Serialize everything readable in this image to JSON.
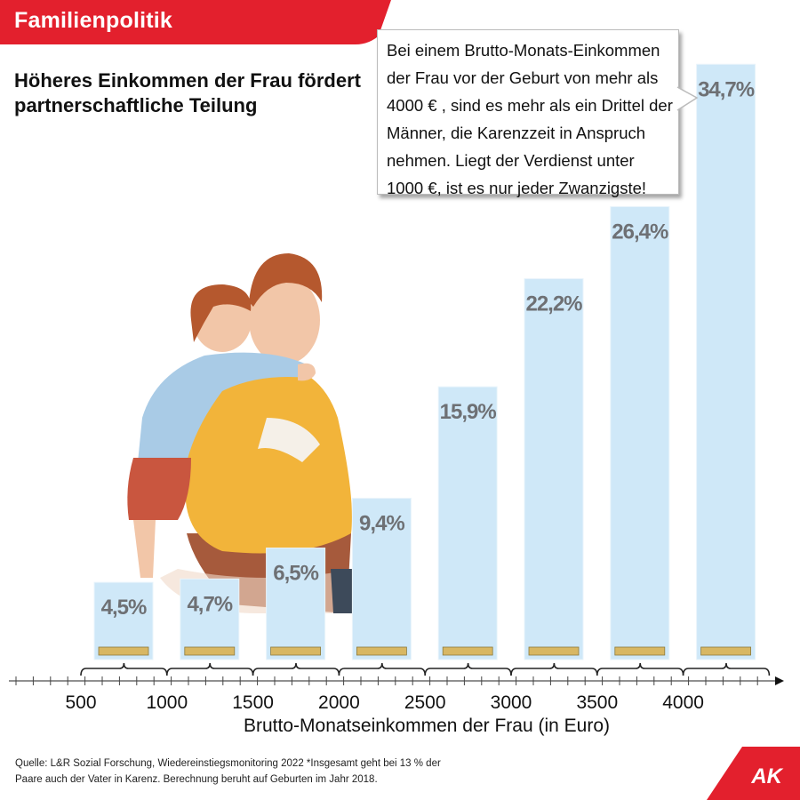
{
  "header": {
    "category": "Familienpolitik",
    "headline": "Höheres Einkommen der Frau fördert partnerschaftliche Teilung"
  },
  "callout": {
    "text": "Bei einem Brutto-Monats-Einkommen\nder Frau vor der Geburt von mehr als\n4000 € , sind es mehr als ein Drittel der\nMänner, die Karenzzeit in Anspruch\nnehmen. Liegt der Verdienst unter\n1000 €, ist es nur jeder Zwanzigste!"
  },
  "footer": {
    "source": "Quelle: L&R Sozial Forschung, Wiedereinstiegsmonitoring 2022 *Insgesamt geht bei 13 % der Paare auch der Vater in Karenz. Berechnung beruht auf Geburten im Jahr 2018.",
    "logo": "AK"
  },
  "colors": {
    "brand_red": "#e3202d",
    "bar_fill": "#cfe8f8",
    "label_gray": "#6e7074",
    "illustration": "father-and-child-illustration"
  },
  "chart_data": {
    "type": "bar",
    "xlabel": "Brutto-Monatseinkommen der Frau (in Euro)",
    "ylabel": "",
    "ylim": [
      0,
      40
    ],
    "tick_labels": [
      "500",
      "1000",
      "1500",
      "2000",
      "2500",
      "3000",
      "3500",
      "4000"
    ],
    "values": [
      4.5,
      4.7,
      6.5,
      9.4,
      15.9,
      22.2,
      26.4,
      34.7
    ],
    "value_labels": [
      "4,5%",
      "4,7%",
      "6,5%",
      "9,4%",
      "15,9%",
      "22,2%",
      "26,4%",
      "34,7%"
    ],
    "grid": false
  }
}
